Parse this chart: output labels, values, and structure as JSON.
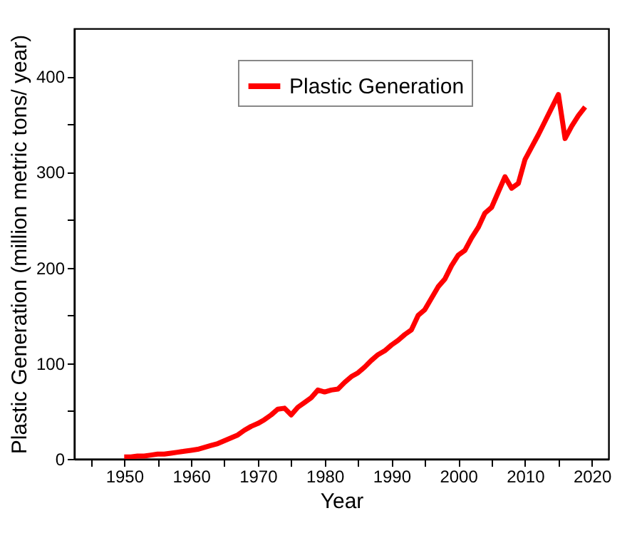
{
  "chart_data": {
    "type": "line",
    "xlabel": "Year",
    "ylabel": "Plastic Generation (million metric tons/ year)",
    "x": [
      1950,
      1951,
      1952,
      1953,
      1954,
      1955,
      1956,
      1957,
      1958,
      1959,
      1960,
      1961,
      1962,
      1963,
      1964,
      1965,
      1966,
      1967,
      1968,
      1969,
      1970,
      1971,
      1972,
      1973,
      1974,
      1975,
      1976,
      1977,
      1978,
      1979,
      1980,
      1981,
      1982,
      1983,
      1984,
      1985,
      1986,
      1987,
      1988,
      1989,
      1990,
      1991,
      1992,
      1993,
      1994,
      1995,
      1996,
      1997,
      1998,
      1999,
      2000,
      2001,
      2002,
      2003,
      2004,
      2005,
      2006,
      2007,
      2008,
      2009,
      2010,
      2011,
      2012,
      2013,
      2014,
      2015,
      2016,
      2017,
      2018,
      2019
    ],
    "series": [
      {
        "name": "Plastic Generation",
        "color": "#ff0000",
        "values": [
          2,
          2,
          3,
          3,
          4,
          5,
          5,
          6,
          7,
          8,
          9,
          10,
          12,
          14,
          16,
          19,
          22,
          25,
          30,
          34,
          37,
          41,
          46,
          52,
          53,
          46,
          54,
          59,
          64,
          72,
          70,
          72,
          73,
          80,
          86,
          90,
          96,
          103,
          109,
          113,
          119,
          124,
          130,
          135,
          150,
          156,
          168,
          180,
          188,
          202,
          213,
          218,
          231,
          242,
          257,
          263,
          279,
          295,
          283,
          288,
          313,
          326,
          339,
          353,
          367,
          381,
          335,
          348,
          359,
          368
        ]
      }
    ],
    "xlim": [
      1942.5,
      2022.5
    ],
    "xticks": [
      {
        "value": 1945,
        "label": null
      },
      1950,
      {
        "value": 1955,
        "label": null
      },
      1960,
      {
        "value": 1965,
        "label": null
      },
      1970,
      {
        "value": 1975,
        "label": null
      },
      1980,
      {
        "value": 1985,
        "label": null
      },
      1990,
      {
        "value": 1995,
        "label": null
      },
      2000,
      {
        "value": 2005,
        "label": null
      },
      2010,
      {
        "value": 2015,
        "label": null
      },
      2020
    ],
    "ylim": [
      0,
      450
    ],
    "yticks": [
      0,
      {
        "value": 50,
        "label": null
      },
      100,
      {
        "value": 150,
        "label": null
      },
      200,
      {
        "value": 250,
        "label": null
      },
      300,
      {
        "value": 350,
        "label": null
      },
      400
    ],
    "legend": "top",
    "grid": false,
    "marker": "none",
    "line_style": "solid"
  }
}
